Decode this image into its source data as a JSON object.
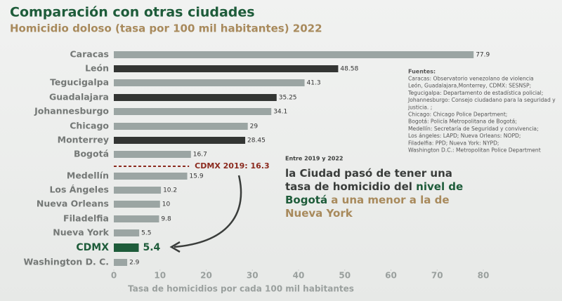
{
  "chart_data": {
    "type": "barh",
    "title": "Comparación con otras ciudades",
    "subtitle": "Homicidio doloso (tasa por 100 mil habitantes) 2022",
    "xlabel": "Tasa de homicidios por cada 100 mil habitantes",
    "categories": [
      "Caracas",
      "León",
      "Tegucigalpa",
      "Guadalajara",
      "Johannesburgo",
      "Chicago",
      "Monterrey",
      "Bogotá",
      "Medellín",
      "Los Ángeles",
      "Nueva Orleans",
      "Filadelfia",
      "Nueva York",
      "CDMX",
      "Washington D. C."
    ],
    "values": [
      77.9,
      48.58,
      41.3,
      35.25,
      34.1,
      29,
      28.45,
      16.7,
      15.9,
      10.2,
      10,
      9.8,
      5.5,
      5.4,
      2.9
    ],
    "colors": [
      "#9ba5a3",
      "#333533",
      "#9ba5a3",
      "#333533",
      "#9ba5a3",
      "#9ba5a3",
      "#333533",
      "#9ba5a3",
      "#9ba5a3",
      "#9ba5a3",
      "#9ba5a3",
      "#9ba5a3",
      "#9ba5a3",
      "#1e5c3a",
      "#9ba5a3"
    ],
    "highlight": 13,
    "xlim": [
      0,
      80
    ],
    "xticks": [
      0,
      10,
      20,
      30,
      40,
      50,
      60,
      70,
      80
    ],
    "reference": {
      "value": 16.3,
      "label": "CDMX 2019: 16.3",
      "color": "#8b2a1e"
    },
    "sources": {
      "title": "Fuentes:",
      "lines": [
        "Caracas: Observatorio venezolano de violencia",
        "León, Guadalajara,Monterrey, CDMX: SESNSP;",
        "Tegucigalpa: Departamento de estadística policial;",
        "Johannesburgo: Consejo ciudadano para la seguridad y",
        "justicia. ;",
        "Chicago: Chicago Police Department;",
        "Bogotá: Policía Metropolitana de Bogotá;",
        "Medellín: Secretaría de Seguridad y convivencia;",
        "Los ángeles: LAPD; Nueva Orleans: NOPD;",
        "Filadelfia: PPD; Nueva York: NYPD;",
        "Washington D.C.: Metropolitan Police Department"
      ]
    },
    "annotation": {
      "intro": "Entre 2019 y 2022",
      "lines": [
        [
          {
            "text": "la Ciudad pasó de tener una",
            "color": "#3a3d3b"
          }
        ],
        [
          {
            "text": "tasa de homicidio del ",
            "color": "#3a3d3b"
          },
          {
            "text": "nivel de",
            "color": "#1e5c3a"
          }
        ],
        [
          {
            "text": "Bogotá",
            "color": "#1e5c3a"
          },
          {
            "text": " a una menor a la de",
            "color": "#a88a5c"
          }
        ],
        [
          {
            "text": "Nueva York",
            "color": "#a88a5c"
          }
        ]
      ]
    }
  }
}
